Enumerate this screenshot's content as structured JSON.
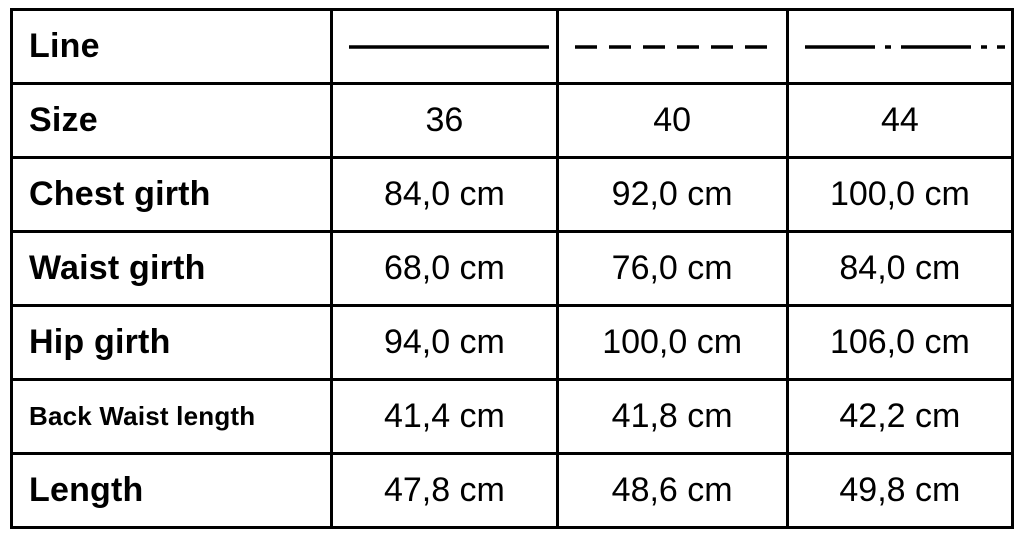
{
  "table": {
    "cols": [
      "32%",
      "22.5%",
      "23%",
      "22.5%"
    ],
    "border_color": "#000000",
    "border_width": 3,
    "background_color": "#ffffff",
    "label_font_weight": 700,
    "label_font_size": 34,
    "label_font_size_small": 26,
    "value_font_size": 34,
    "text_color": "#000000",
    "line_styles": {
      "solid": {
        "dasharray": "",
        "width": 3.5
      },
      "dashed": {
        "dasharray": "22 12",
        "width": 3.5
      },
      "dashdot": {
        "dasharray": "70 10 6 10",
        "width": 3.5
      }
    },
    "rows": [
      {
        "label": "Line",
        "kind": "line",
        "styles": [
          "solid",
          "dashed",
          "dashdot"
        ]
      },
      {
        "label": "Size",
        "kind": "value",
        "values": [
          "36",
          "40",
          "44"
        ]
      },
      {
        "label": "Chest girth",
        "kind": "value",
        "values": [
          "84,0 cm",
          "92,0 cm",
          "100,0 cm"
        ]
      },
      {
        "label": "Waist girth",
        "kind": "value",
        "values": [
          "68,0 cm",
          "76,0 cm",
          "84,0 cm"
        ]
      },
      {
        "label": "Hip girth",
        "kind": "value",
        "values": [
          "94,0 cm",
          "100,0 cm",
          "106,0 cm"
        ]
      },
      {
        "label": "Back Waist length",
        "kind": "value",
        "small": true,
        "values": [
          "41,4 cm",
          "41,8 cm",
          "42,2 cm"
        ]
      },
      {
        "label": "Length",
        "kind": "value",
        "values": [
          "47,8 cm",
          "48,6 cm",
          "49,8 cm"
        ]
      }
    ]
  }
}
